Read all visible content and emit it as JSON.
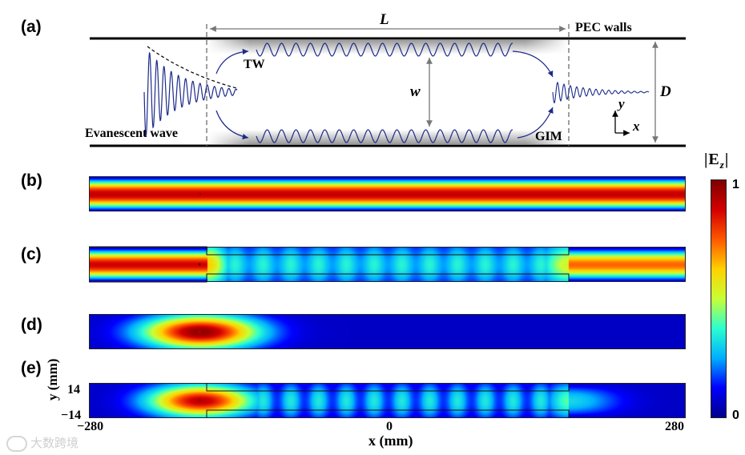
{
  "panels": {
    "a": "(a)",
    "b": "(b)",
    "c": "(c)",
    "d": "(d)",
    "e": "(e)"
  },
  "schematic": {
    "length_label": "L",
    "walls_label": "PEC walls",
    "width_label": "w",
    "height_label": "D",
    "tw_label": "TW",
    "gim_label": "GIM",
    "evanescent_label": "Evanescent wave",
    "axis_y": "y",
    "axis_x": "x"
  },
  "colorbar": {
    "title": "|E",
    "subscript": "z",
    "title_close": "|",
    "max_label": "1",
    "min_label": "0",
    "colors": [
      "#00008f",
      "#0000ff",
      "#00b0ff",
      "#2cffd0",
      "#c8ff36",
      "#ffd200",
      "#ff5a00",
      "#d50000",
      "#800000"
    ]
  },
  "axes": {
    "y_label": "y (mm)",
    "y_tick_top": "14",
    "y_tick_bottom": "−14",
    "x_label": "x (mm)",
    "x_tick_left": "−280",
    "x_tick_mid": "0",
    "x_tick_right": "280"
  },
  "watermark": "大数跨境"
}
